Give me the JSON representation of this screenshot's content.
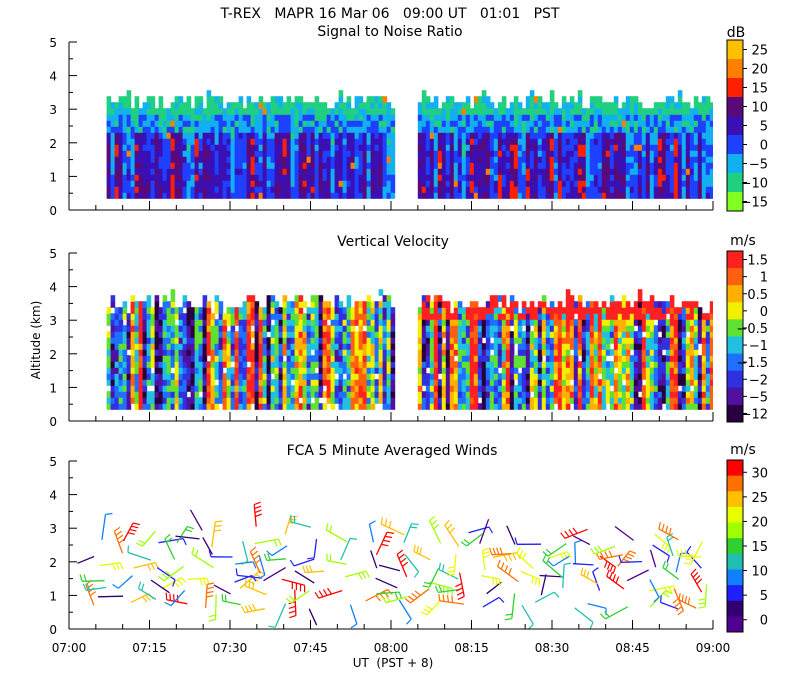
{
  "title": "T-REX   MAPR 16 Mar 06   09:00 UT   01:01   PST",
  "x_axis": {
    "label": "UT  (PST + 8)",
    "range_minutes": [
      420,
      540
    ],
    "ticks": [
      {
        "minute": 420,
        "label": "07:00"
      },
      {
        "minute": 435,
        "label": "07:15"
      },
      {
        "minute": 450,
        "label": "07:30"
      },
      {
        "minute": 465,
        "label": "07:45"
      },
      {
        "minute": 480,
        "label": "08:00"
      },
      {
        "minute": 495,
        "label": "08:15"
      },
      {
        "minute": 510,
        "label": "08:30"
      },
      {
        "minute": 525,
        "label": "08:45"
      },
      {
        "minute": 540,
        "label": "09:00"
      }
    ]
  },
  "y_axis": {
    "label": "Altitude (km)",
    "range": [
      0,
      5
    ],
    "ticks": [
      "0",
      "1",
      "2",
      "3",
      "4",
      "5"
    ]
  },
  "panels": [
    {
      "title": "Signal to Noise Ratio",
      "colorbar_unit": "dB",
      "colorbar_labels": [
        "25",
        "20",
        "15",
        "10",
        "5",
        "0",
        "−5",
        "−10",
        "−15"
      ],
      "colorbar_colors": [
        "#ffc000",
        "#ff8000",
        "#ff2000",
        "#5a0a78",
        "#3a10b4",
        "#1e40ff",
        "#12b0f0",
        "#20d080",
        "#80ff20"
      ]
    },
    {
      "title": "Vertical Velocity",
      "colorbar_unit": "m/s",
      "colorbar_labels": [
        "1.5",
        "1",
        "0.5",
        "0",
        "−0.5",
        "−1",
        "−1.5",
        "−2",
        "−5",
        "−12"
      ],
      "colorbar_colors": [
        "#ff2020",
        "#ff6010",
        "#ffb000",
        "#f0f000",
        "#60e030",
        "#20c0e0",
        "#2070ff",
        "#3030e0",
        "#5010a0",
        "#280040"
      ]
    },
    {
      "title": "FCA 5 Minute Averaged Winds",
      "colorbar_unit": "m/s",
      "colorbar_labels": [
        "30",
        "25",
        "20",
        "15",
        "10",
        "5",
        "0"
      ],
      "colorbar_colors": [
        "#ff0000",
        "#ff7000",
        "#ffc000",
        "#e8ff00",
        "#a0ff00",
        "#30d030",
        "#20c0b0",
        "#1080ff",
        "#2020ff",
        "#300070",
        "#500090"
      ]
    }
  ],
  "chart_data": [
    {
      "type": "heatmap",
      "title": "Signal to Noise Ratio",
      "unit": "dB",
      "xlabel": "UT  (PST + 8)",
      "ylabel": "Altitude (km)",
      "xlim_minutes": [
        420,
        540
      ],
      "ylim_km": [
        0,
        5
      ],
      "data_segments_minutes": [
        [
          427,
          480
        ],
        [
          485,
          540
        ]
      ],
      "altitude_coverage_km": [
        0.35,
        3.6
      ],
      "value_range_db": [
        -15,
        25
      ]
    },
    {
      "type": "heatmap",
      "title": "Vertical Velocity",
      "unit": "m/s",
      "xlabel": "UT  (PST + 8)",
      "ylabel": "Altitude (km)",
      "xlim_minutes": [
        420,
        540
      ],
      "ylim_km": [
        0,
        5
      ],
      "data_segments_minutes": [
        [
          427,
          480
        ],
        [
          485,
          540
        ]
      ],
      "altitude_coverage_km": [
        0.35,
        3.7
      ],
      "value_range_ms": [
        -12,
        1.5
      ]
    },
    {
      "type": "scatter",
      "title": "FCA 5 Minute Averaged Winds",
      "unit": "m/s",
      "xlabel": "UT  (PST + 8)",
      "ylabel": "Altitude (km)",
      "xlim_minutes": [
        420,
        540
      ],
      "ylim_km": [
        0,
        5
      ],
      "barb_heights_km": [
        0.75,
        1.1,
        1.45,
        1.8,
        2.15,
        2.55,
        2.9
      ],
      "barb_times_minutes": [
        426,
        431,
        436,
        441,
        446,
        451,
        456,
        461,
        466,
        471,
        476,
        482,
        488,
        493,
        498,
        503,
        508,
        513,
        518,
        523,
        528,
        533,
        538
      ],
      "speed_range_ms": [
        0,
        30
      ]
    }
  ]
}
